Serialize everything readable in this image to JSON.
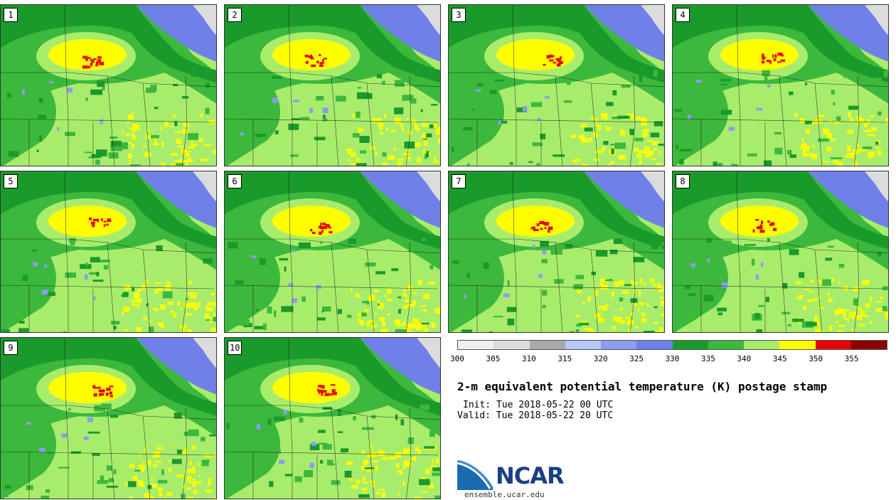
{
  "panels": [
    {
      "label": "1",
      "variant": 1
    },
    {
      "label": "2",
      "variant": 2
    },
    {
      "label": "3",
      "variant": 3
    },
    {
      "label": "4",
      "variant": 4
    },
    {
      "label": "5",
      "variant": 5
    },
    {
      "label": "6",
      "variant": 6
    },
    {
      "label": "7",
      "variant": 7
    },
    {
      "label": "8",
      "variant": 8
    },
    {
      "label": "9",
      "variant": 9
    },
    {
      "label": "10",
      "variant": 10
    }
  ],
  "colorbar": {
    "colors": [
      "#f0f0f0",
      "#dcdcdc",
      "#a9a9a9",
      "#b8c8f8",
      "#8c9cf0",
      "#6f80e8",
      "#1a9a2a",
      "#3cb83c",
      "#a8ec6c",
      "#ffff00",
      "#e60000",
      "#8b0000"
    ],
    "ticks": [
      "300",
      "305",
      "310",
      "315",
      "320",
      "325",
      "330",
      "335",
      "340",
      "345",
      "350",
      "355"
    ]
  },
  "title": "2-m equivalent potential temperature (K) postage stamp",
  "init": "Init: Tue 2018-05-22 00 UTC",
  "valid": "Valid: Tue 2018-05-22 20 UTC",
  "logo": {
    "name": "NCAR",
    "url": "ensemble.ucar.edu"
  }
}
